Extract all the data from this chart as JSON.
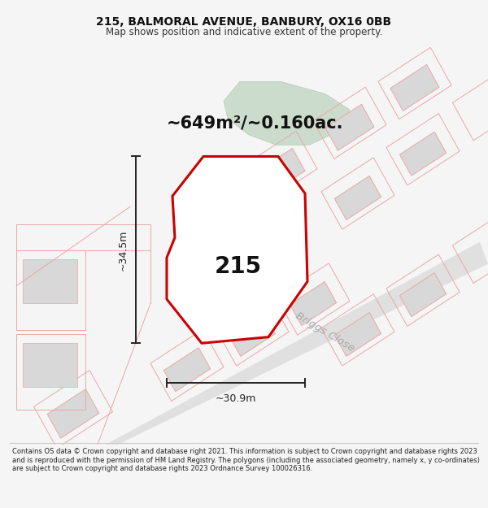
{
  "title_line1": "215, BALMORAL AVENUE, BANBURY, OX16 0BB",
  "title_line2": "Map shows position and indicative extent of the property.",
  "area_text": "~649m²/~0.160ac.",
  "property_number": "215",
  "dim_vertical": "~34.5m",
  "dim_horizontal": "~30.9m",
  "road_label": "Briggs Close",
  "footer_text": "Contains OS data © Crown copyright and database right 2021. This information is subject to Crown copyright and database rights 2023 and is reproduced with the permission of HM Land Registry. The polygons (including the associated geometry, namely x, y co-ordinates) are subject to Crown copyright and database rights 2023 Ordnance Survey 100026316.",
  "bg_color": "#f5f5f5",
  "map_bg": "#ffffff",
  "property_fill": "#ffffff",
  "property_edge": "#cc0000",
  "green_area_color": "#ccdccc",
  "outline_color": "#e8a8a8",
  "building_color": "#d8d8d8",
  "road_band_color": "#e0e0e0",
  "dim_line_color": "#222222",
  "road_label_color": "#aaaaaa"
}
